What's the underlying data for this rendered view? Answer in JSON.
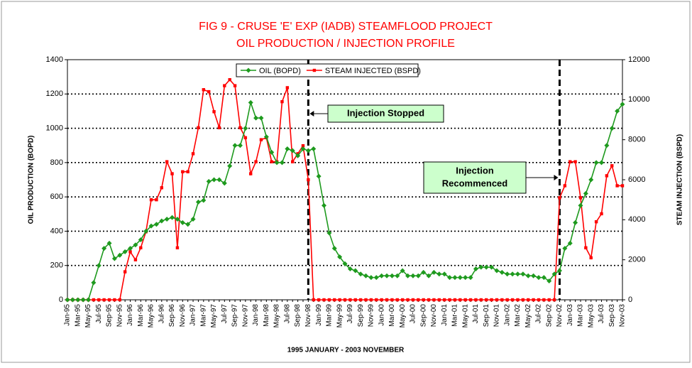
{
  "chart_data": {
    "type": "line",
    "title": "FIG 9  -  CRUSE 'E' EXP (IADB) STEAMFLOOD PROJECT",
    "subtitle": "OIL PRODUCTION /  INJECTION PROFILE",
    "x_label": "1995 JANUARY - 2003 NOVEMBER",
    "y_label": "OIL PRODUCTION (BOPD)",
    "y2_label": "STEAM INJECTION (BSPD)",
    "categories": [
      "Jan-95",
      null,
      "Mar-95",
      null,
      "May-95",
      null,
      "Jul-95",
      null,
      "Sep-95",
      null,
      "Nov-95",
      null,
      "Jan-96",
      null,
      "Mar-96",
      null,
      "May-96",
      null,
      "Jul-96",
      null,
      "Sep-96",
      null,
      "Nov-96",
      null,
      "Jan-97",
      null,
      "Mar-97",
      null,
      "May-97",
      null,
      "Jul-97",
      null,
      "Sep-97",
      null,
      "Nov-97",
      null,
      "Jan-98",
      null,
      "Mar-98",
      null,
      "May-98",
      null,
      "Jul-98",
      null,
      "Sep-98",
      null,
      "Nov-98",
      null,
      "Jan-99",
      null,
      "Mar-99",
      null,
      "May-99",
      null,
      "Jul-99",
      null,
      "Sep-99",
      null,
      "Nov-99",
      null,
      "Jan-00",
      null,
      "Mar-00",
      null,
      "May-00",
      null,
      "Jul-00",
      null,
      "Sep-00",
      null,
      "Nov-00",
      null,
      "Jan-01",
      null,
      "Mar-01",
      null,
      "May-01",
      null,
      "Jul-01",
      null,
      "Sep-01",
      null,
      "Nov-01",
      null,
      "Jan-02",
      null,
      "Mar-02",
      null,
      "May-02",
      null,
      "Jul-02",
      null,
      "Sep-02",
      null,
      "Nov-02",
      null,
      "Jan-03",
      null,
      "Mar-03",
      null,
      "May-03",
      null,
      "Jul-03",
      null,
      "Sep-03",
      null,
      "Nov-03"
    ],
    "series": [
      {
        "name": "OIL (BOPD)",
        "color": "#1e9a1e",
        "marker": "diamond",
        "values": [
          0,
          0,
          0,
          0,
          0,
          100,
          200,
          300,
          330,
          240,
          260,
          280,
          300,
          320,
          350,
          400,
          430,
          440,
          460,
          470,
          480,
          470,
          450,
          440,
          470,
          570,
          580,
          690,
          700,
          700,
          680,
          780,
          900,
          900,
          1000,
          1150,
          1060,
          1060,
          950,
          860,
          800,
          800,
          880,
          870,
          840,
          880,
          870,
          880,
          720,
          550,
          390,
          300,
          250,
          210,
          180,
          170,
          150,
          140,
          130,
          130,
          140,
          140,
          140,
          140,
          170,
          140,
          140,
          140,
          160,
          140,
          160,
          150,
          150,
          130,
          130,
          130,
          130,
          130,
          180,
          190,
          190,
          190,
          170,
          160,
          150,
          150,
          150,
          150,
          140,
          140,
          130,
          130,
          110,
          150,
          170,
          300,
          330,
          450,
          550,
          620,
          700,
          800,
          800,
          900,
          1000,
          1100,
          1140
        ]
      },
      {
        "name": "STEAM INJECTED (BSPD)",
        "color": "#ff0000",
        "marker": "square",
        "axis": "y2",
        "values": [
          0,
          0,
          0,
          0,
          0,
          0,
          0,
          0,
          0,
          0,
          0,
          1400,
          2400,
          2000,
          2600,
          3400,
          5000,
          5000,
          5600,
          6900,
          6300,
          2600,
          6400,
          6400,
          7300,
          8600,
          10500,
          10400,
          9400,
          8600,
          10700,
          11000,
          10700,
          8600,
          8100,
          6300,
          6900,
          8000,
          8100,
          6900,
          6900,
          9900,
          10600,
          6900,
          7300,
          7700,
          6000,
          0,
          0,
          0,
          0,
          0,
          0,
          0,
          0,
          0,
          0,
          0,
          0,
          0,
          0,
          0,
          0,
          0,
          0,
          0,
          0,
          0,
          0,
          0,
          0,
          0,
          0,
          0,
          0,
          0,
          0,
          0,
          0,
          0,
          0,
          0,
          0,
          0,
          0,
          0,
          0,
          0,
          0,
          0,
          0,
          0,
          0,
          0,
          5100,
          5700,
          6900,
          6900,
          5100,
          2600,
          2100,
          3900,
          4300,
          6200,
          6700,
          5700,
          5700
        ]
      }
    ],
    "ylim": [
      0,
      1400
    ],
    "yticks": [
      0,
      200,
      400,
      600,
      800,
      1000,
      1200,
      1400
    ],
    "y2lim": [
      0,
      12000
    ],
    "y2ticks": [
      0,
      2000,
      4000,
      6000,
      8000,
      10000,
      12000
    ],
    "grid": true,
    "legend": "top",
    "annotations": [
      {
        "text": [
          "Injection Stopped"
        ],
        "category": "Nov-98"
      },
      {
        "text": [
          "Injection",
          "Recommenced"
        ],
        "category": "Nov-02"
      }
    ]
  }
}
